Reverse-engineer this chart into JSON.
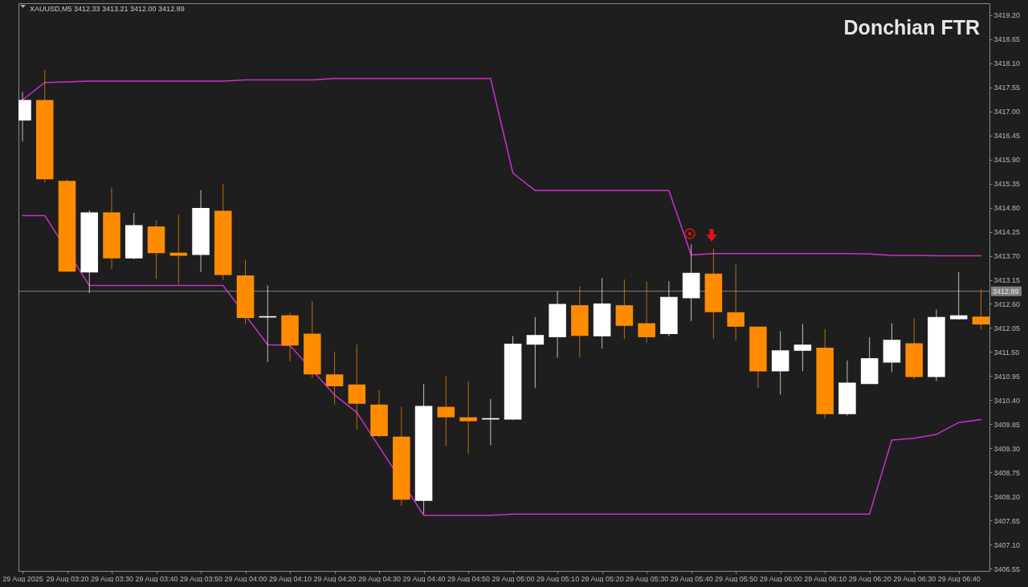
{
  "chart_data": {
    "type": "candlestick",
    "title": "Donchian FTR",
    "annotations": [
      "XAUUSD,M5  3412.33 3413.21 3412.00 3412.89"
    ],
    "x": [
      "2025-08-29T03:10",
      "2025-08-29T03:15",
      "2025-08-29T03:20",
      "2025-08-29T03:25",
      "2025-08-29T03:30",
      "2025-08-29T03:35",
      "2025-08-29T03:40",
      "2025-08-29T03:45",
      "2025-08-29T03:50",
      "2025-08-29T03:55",
      "2025-08-29T04:00",
      "2025-08-29T04:05",
      "2025-08-29T04:10",
      "2025-08-29T04:15",
      "2025-08-29T04:20",
      "2025-08-29T04:25",
      "2025-08-29T04:30",
      "2025-08-29T04:35",
      "2025-08-29T04:40",
      "2025-08-29T04:45",
      "2025-08-29T04:50",
      "2025-08-29T04:55",
      "2025-08-29T05:00",
      "2025-08-29T05:05",
      "2025-08-29T05:10",
      "2025-08-29T05:15",
      "2025-08-29T05:20",
      "2025-08-29T05:25",
      "2025-08-29T05:30",
      "2025-08-29T05:35",
      "2025-08-29T05:40",
      "2025-08-29T05:45",
      "2025-08-29T05:50",
      "2025-08-29T05:55",
      "2025-08-29T06:00",
      "2025-08-29T06:05",
      "2025-08-29T06:10",
      "2025-08-29T06:15",
      "2025-08-29T06:20",
      "2025-08-29T06:25",
      "2025-08-29T06:30",
      "2025-08-29T06:35",
      "2025-08-29T06:40",
      "2025-08-29T06:45"
    ],
    "ohlc": [
      [
        3416.79,
        3417.44,
        3416.31,
        3417.26
      ],
      [
        3417.26,
        3417.94,
        3415.37,
        3415.45
      ],
      [
        3415.41,
        3415.45,
        3413.33,
        3413.34
      ],
      [
        3413.32,
        3414.74,
        3412.85,
        3414.69
      ],
      [
        3414.69,
        3415.26,
        3413.39,
        3413.64
      ],
      [
        3413.64,
        3414.68,
        3413.62,
        3414.4
      ],
      [
        3414.37,
        3414.51,
        3413.17,
        3413.76
      ],
      [
        3413.77,
        3414.64,
        3413.05,
        3413.7
      ],
      [
        3413.72,
        3415.2,
        3413.33,
        3414.79
      ],
      [
        3414.73,
        3415.34,
        3413.15,
        3413.26
      ],
      [
        3413.25,
        3413.61,
        3412.13,
        3412.28
      ],
      [
        3412.29,
        3413.02,
        3411.27,
        3412.32
      ],
      [
        3412.34,
        3412.41,
        3411.29,
        3411.65
      ],
      [
        3411.92,
        3412.66,
        3410.91,
        3410.99
      ],
      [
        3410.99,
        3411.51,
        3410.3,
        3410.72
      ],
      [
        3410.76,
        3411.67,
        3409.72,
        3410.32
      ],
      [
        3410.3,
        3410.63,
        3409.55,
        3409.58
      ],
      [
        3409.57,
        3410.25,
        3407.99,
        3408.13
      ],
      [
        3408.1,
        3410.77,
        3407.8,
        3410.27
      ],
      [
        3410.25,
        3410.95,
        3409.35,
        3410.01
      ],
      [
        3410.01,
        3410.84,
        3409.17,
        3409.92
      ],
      [
        3409.96,
        3410.43,
        3409.37,
        3409.99
      ],
      [
        3409.96,
        3411.87,
        3409.95,
        3411.69
      ],
      [
        3411.67,
        3412.3,
        3410.68,
        3411.89
      ],
      [
        3411.84,
        3412.89,
        3411.37,
        3412.6
      ],
      [
        3412.57,
        3413.0,
        3411.38,
        3411.87
      ],
      [
        3411.86,
        3413.19,
        3411.58,
        3412.61
      ],
      [
        3412.57,
        3413.16,
        3411.8,
        3412.1
      ],
      [
        3412.16,
        3413.11,
        3411.72,
        3411.84
      ],
      [
        3411.91,
        3413.12,
        3411.86,
        3412.76
      ],
      [
        3412.73,
        3413.96,
        3412.21,
        3413.31
      ],
      [
        3413.29,
        3413.86,
        3411.81,
        3412.41
      ],
      [
        3412.41,
        3413.5,
        3411.76,
        3412.08
      ],
      [
        3412.08,
        3412.08,
        3410.68,
        3411.06
      ],
      [
        3411.06,
        3411.98,
        3410.53,
        3411.54
      ],
      [
        3411.53,
        3412.14,
        3411.06,
        3411.67
      ],
      [
        3411.6,
        3412.03,
        3409.99,
        3410.08
      ],
      [
        3410.08,
        3411.31,
        3410.05,
        3410.8
      ],
      [
        3410.77,
        3411.84,
        3410.77,
        3411.36
      ],
      [
        3411.26,
        3412.16,
        3411.05,
        3411.78
      ],
      [
        3411.7,
        3412.27,
        3410.88,
        3410.93
      ],
      [
        3410.93,
        3412.47,
        3410.84,
        3412.3
      ],
      [
        3412.25,
        3413.33,
        3412.24,
        3412.34
      ],
      [
        3412.31,
        3412.94,
        3412.02,
        3412.13
      ]
    ],
    "colors": [
      "#ffffff",
      "#ff8c00",
      "#ff8c00",
      "#ffffff",
      "#ff8c00",
      "#ffffff",
      "#ff8c00",
      "#ff8c00",
      "#ffffff",
      "#ff8c00",
      "#ff8c00",
      "#ffffff",
      "#ff8c00",
      "#ff8c00",
      "#ff8c00",
      "#ff8c00",
      "#ff8c00",
      "#ff8c00",
      "#ffffff",
      "#ff8c00",
      "#ff8c00",
      "#ffffff",
      "#ffffff",
      "#ffffff",
      "#ffffff",
      "#ff8c00",
      "#ffffff",
      "#ff8c00",
      "#ff8c00",
      "#ffffff",
      "#ffffff",
      "#ff8c00",
      "#ff8c00",
      "#ff8c00",
      "#ffffff",
      "#ffffff",
      "#ff8c00",
      "#ffffff",
      "#ffffff",
      "#ffffff",
      "#ff8c00",
      "#ffffff",
      "#ffffff",
      "#ff8c00"
    ],
    "series": [
      {
        "type": "line",
        "color": "#c832c8",
        "values": [
          3417.26,
          3417.66,
          3417.67,
          3417.69,
          3417.69,
          3417.69,
          3417.69,
          3417.69,
          3417.69,
          3417.69,
          3417.72,
          3417.72,
          3417.72,
          3417.72,
          3417.75,
          3417.75,
          3417.75,
          3417.75,
          3417.75,
          3417.75,
          3417.75,
          3417.75,
          3415.59,
          3415.19,
          3415.19,
          3415.19,
          3415.19,
          3415.19,
          3415.19,
          3415.19,
          3413.72,
          3413.75,
          3413.75,
          3413.75,
          3413.75,
          3413.75,
          3413.75,
          3413.75,
          3413.74,
          3413.71,
          3413.71,
          3413.7,
          3413.7,
          3413.7
        ]
      },
      {
        "type": "line",
        "color": "#c832c8",
        "values": [
          3414.62,
          3414.62,
          null,
          3413.02,
          3413.02,
          3413.02,
          3413.02,
          3413.02,
          3413.02,
          3413.02,
          null,
          3411.67,
          3411.65,
          null,
          3410.52,
          3410.12,
          null,
          null,
          3407.77,
          3407.77,
          3407.77,
          3407.77,
          3407.8,
          3407.8,
          3407.8,
          3407.8,
          3407.8,
          3407.8,
          3407.8,
          3407.8,
          3407.8,
          3407.8,
          3407.8,
          3407.8,
          3407.8,
          3407.8,
          3407.8,
          3407.8,
          3407.8,
          3409.49,
          3409.53,
          3409.62,
          3409.89,
          3409.96
        ]
      }
    ],
    "ref_lines": [
      {
        "axis": "y",
        "value": 3412.89,
        "label": "3412.89",
        "color": "#808080"
      }
    ],
    "xlim": [
      "2025-08-29T03:10",
      "2025-08-29T06:46"
    ],
    "xticks": [
      {
        "value": "2025-08-29T03:10",
        "label": "29 Aug 2025"
      },
      {
        "value": "2025-08-29T03:20",
        "label": "29 Aug 03:20"
      },
      {
        "value": "2025-08-29T03:30",
        "label": "29 Aug 03:30"
      },
      {
        "value": "2025-08-29T03:40",
        "label": "29 Aug 03:40"
      },
      {
        "value": "2025-08-29T03:50",
        "label": "29 Aug 03:50"
      },
      {
        "value": "2025-08-29T04:00",
        "label": "29 Aug 04:00"
      },
      {
        "value": "2025-08-29T04:10",
        "label": "29 Aug 04:10"
      },
      {
        "value": "2025-08-29T04:20",
        "label": "29 Aug 04:20"
      },
      {
        "value": "2025-08-29T04:30",
        "label": "29 Aug 04:30"
      },
      {
        "value": "2025-08-29T04:40",
        "label": "29 Aug 04:40"
      },
      {
        "value": "2025-08-29T04:50",
        "label": "29 Aug 04:50"
      },
      {
        "value": "2025-08-29T05:00",
        "label": "29 Aug 05:00"
      },
      {
        "value": "2025-08-29T05:10",
        "label": "29 Aug 05:10"
      },
      {
        "value": "2025-08-29T05:20",
        "label": "29 Aug 05:20"
      },
      {
        "value": "2025-08-29T05:30",
        "label": "29 Aug 05:30"
      },
      {
        "value": "2025-08-29T05:40",
        "label": "29 Aug 05:40"
      },
      {
        "value": "2025-08-29T05:50",
        "label": "29 Aug 05:50"
      },
      {
        "value": "2025-08-29T06:00",
        "label": "29 Aug 06:00"
      },
      {
        "value": "2025-08-29T06:10",
        "label": "29 Aug 06:10"
      },
      {
        "value": "2025-08-29T06:20",
        "label": "29 Aug 06:20"
      },
      {
        "value": "2025-08-29T06:30",
        "label": "29 Aug 06:30"
      },
      {
        "value": "2025-08-29T06:40",
        "label": "29 Aug 06:40"
      }
    ],
    "ylim": [
      3406.5,
      3419.47
    ],
    "yticks": [
      3406.55,
      {
        "value": 3407.1,
        "label": "3407.10"
      },
      3407.65,
      {
        "value": 3408.2,
        "label": "3408.20"
      },
      3408.75,
      {
        "value": 3409.3,
        "label": "3409.30"
      },
      3409.85,
      {
        "value": 3410.4,
        "label": "3410.40"
      },
      3410.95,
      {
        "value": 3411.5,
        "label": "3411.50"
      },
      3412.05,
      {
        "value": 3412.6,
        "label": "3412.60"
      },
      3413.15,
      {
        "value": 3413.7,
        "label": "3413.70"
      },
      3414.25,
      {
        "value": 3414.8,
        "label": "3414.80"
      },
      3415.35,
      {
        "value": 3415.9,
        "label": "3415.90"
      },
      3416.45,
      {
        "value": 3417,
        "label": "3417.00"
      },
      3417.55,
      {
        "value": 3418.1,
        "label": "3418.10"
      },
      3418.65,
      {
        "value": 3419.2,
        "label": "3419.20"
      }
    ]
  }
}
